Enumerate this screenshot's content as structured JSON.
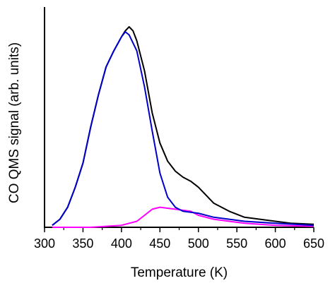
{
  "chart_data": {
    "type": "line",
    "title": "",
    "xlabel": "Temperature (K)",
    "ylabel": "CO QMS signal (arb. units)",
    "xlim": [
      300,
      650
    ],
    "ylim": [
      0,
      1.0
    ],
    "x_ticks": [
      300,
      350,
      400,
      450,
      500,
      550,
      600,
      650
    ],
    "x_tick_labels": [
      "300",
      "350",
      "400",
      "450",
      "500",
      "550",
      "600",
      "650"
    ],
    "y_ticks_labeled": false,
    "grid": false,
    "legend": "none",
    "series": [
      {
        "color": "#000000",
        "points": [
          [
            310,
            0.01
          ],
          [
            320,
            0.04
          ],
          [
            330,
            0.1
          ],
          [
            340,
            0.2
          ],
          [
            350,
            0.32
          ],
          [
            360,
            0.5
          ],
          [
            370,
            0.66
          ],
          [
            380,
            0.8
          ],
          [
            390,
            0.88
          ],
          [
            400,
            0.95
          ],
          [
            405,
            0.98
          ],
          [
            410,
            1.0
          ],
          [
            415,
            0.98
          ],
          [
            420,
            0.93
          ],
          [
            430,
            0.78
          ],
          [
            440,
            0.57
          ],
          [
            450,
            0.42
          ],
          [
            460,
            0.33
          ],
          [
            470,
            0.28
          ],
          [
            480,
            0.25
          ],
          [
            490,
            0.23
          ],
          [
            500,
            0.2
          ],
          [
            510,
            0.16
          ],
          [
            520,
            0.12
          ],
          [
            540,
            0.08
          ],
          [
            560,
            0.05
          ],
          [
            580,
            0.04
          ],
          [
            600,
            0.03
          ],
          [
            620,
            0.02
          ],
          [
            650,
            0.015
          ]
        ]
      },
      {
        "color": "#0000cc",
        "points": [
          [
            310,
            0.01
          ],
          [
            320,
            0.04
          ],
          [
            330,
            0.1
          ],
          [
            340,
            0.2
          ],
          [
            350,
            0.32
          ],
          [
            360,
            0.5
          ],
          [
            370,
            0.66
          ],
          [
            380,
            0.8
          ],
          [
            390,
            0.88
          ],
          [
            400,
            0.95
          ],
          [
            405,
            0.975
          ],
          [
            410,
            0.96
          ],
          [
            420,
            0.88
          ],
          [
            430,
            0.7
          ],
          [
            440,
            0.48
          ],
          [
            450,
            0.27
          ],
          [
            460,
            0.15
          ],
          [
            470,
            0.1
          ],
          [
            480,
            0.08
          ],
          [
            500,
            0.07
          ],
          [
            520,
            0.05
          ],
          [
            540,
            0.04
          ],
          [
            560,
            0.03
          ],
          [
            600,
            0.02
          ],
          [
            650,
            0.01
          ]
        ]
      },
      {
        "color": "#ff00ff",
        "points": [
          [
            310,
            0.0
          ],
          [
            360,
            0.0
          ],
          [
            400,
            0.01
          ],
          [
            420,
            0.03
          ],
          [
            430,
            0.06
          ],
          [
            440,
            0.09
          ],
          [
            450,
            0.1
          ],
          [
            460,
            0.095
          ],
          [
            470,
            0.09
          ],
          [
            480,
            0.085
          ],
          [
            490,
            0.08
          ],
          [
            500,
            0.06
          ],
          [
            520,
            0.04
          ],
          [
            540,
            0.03
          ],
          [
            560,
            0.02
          ],
          [
            600,
            0.01
          ],
          [
            650,
            0.005
          ]
        ]
      }
    ]
  }
}
